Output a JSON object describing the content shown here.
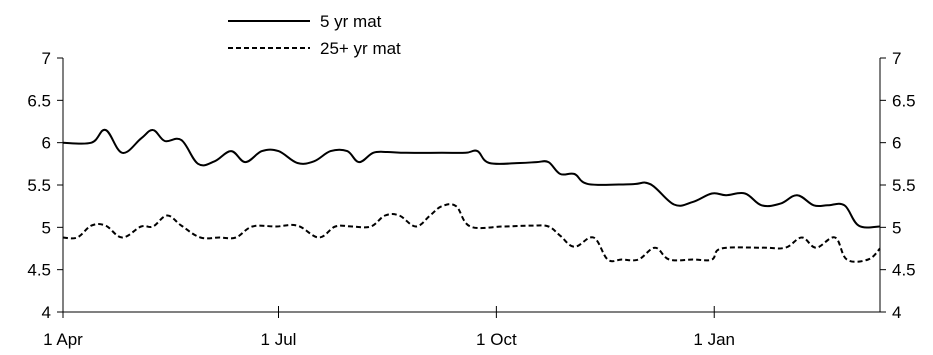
{
  "chart_data": {
    "type": "line",
    "title": "",
    "xlabel": "",
    "ylabel": "",
    "ylim": [
      4,
      7
    ],
    "y_ticks": [
      4,
      4.5,
      5,
      5.5,
      6,
      6.5,
      7
    ],
    "y_tick_labels": [
      "4",
      "4.5",
      "5",
      "5.5",
      "6",
      "6.5",
      "7"
    ],
    "x_ticks": [
      {
        "label": "1 Apr",
        "day": 0
      },
      {
        "label": "1 Jul",
        "day": 91
      },
      {
        "label": "1 Oct",
        "day": 183
      },
      {
        "label": "1 Jan",
        "day": 275
      }
    ],
    "x_range_days": [
      0,
      345
    ],
    "dual_y_axis": true,
    "grid": false,
    "legend_position": "top-center",
    "series": [
      {
        "name": "5 yr mat",
        "style": "solid",
        "color": "#000000",
        "points": [
          [
            0,
            6.0
          ],
          [
            12,
            6.0
          ],
          [
            18,
            6.15
          ],
          [
            25,
            5.88
          ],
          [
            33,
            6.05
          ],
          [
            38,
            6.15
          ],
          [
            43,
            6.02
          ],
          [
            50,
            6.03
          ],
          [
            57,
            5.75
          ],
          [
            64,
            5.78
          ],
          [
            71,
            5.9
          ],
          [
            77,
            5.77
          ],
          [
            84,
            5.9
          ],
          [
            91,
            5.9
          ],
          [
            99,
            5.76
          ],
          [
            106,
            5.78
          ],
          [
            113,
            5.9
          ],
          [
            120,
            5.9
          ],
          [
            125,
            5.77
          ],
          [
            131,
            5.88
          ],
          [
            137,
            5.89
          ],
          [
            145,
            5.88
          ],
          [
            160,
            5.88
          ],
          [
            170,
            5.88
          ],
          [
            175,
            5.9
          ],
          [
            180,
            5.76
          ],
          [
            193,
            5.76
          ],
          [
            200,
            5.77
          ],
          [
            205,
            5.77
          ],
          [
            210,
            5.63
          ],
          [
            216,
            5.63
          ],
          [
            222,
            5.51
          ],
          [
            240,
            5.51
          ],
          [
            248,
            5.51
          ],
          [
            258,
            5.27
          ],
          [
            266,
            5.3
          ],
          [
            274,
            5.4
          ],
          [
            280,
            5.38
          ],
          [
            288,
            5.4
          ],
          [
            295,
            5.26
          ],
          [
            303,
            5.28
          ],
          [
            310,
            5.38
          ],
          [
            317,
            5.26
          ],
          [
            323,
            5.26
          ],
          [
            330,
            5.26
          ],
          [
            336,
            5.02
          ],
          [
            345,
            5.01
          ]
        ]
      },
      {
        "name": "25+ yr mat",
        "style": "dashed",
        "color": "#000000",
        "points": [
          [
            0,
            4.88
          ],
          [
            6,
            4.88
          ],
          [
            12,
            5.02
          ],
          [
            18,
            5.02
          ],
          [
            25,
            4.88
          ],
          [
            33,
            5.01
          ],
          [
            38,
            5.01
          ],
          [
            44,
            5.14
          ],
          [
            50,
            5.02
          ],
          [
            58,
            4.88
          ],
          [
            66,
            4.88
          ],
          [
            73,
            4.88
          ],
          [
            80,
            5.01
          ],
          [
            90,
            5.01
          ],
          [
            99,
            5.02
          ],
          [
            108,
            4.88
          ],
          [
            115,
            5.01
          ],
          [
            122,
            5.01
          ],
          [
            130,
            5.01
          ],
          [
            136,
            5.14
          ],
          [
            142,
            5.14
          ],
          [
            149,
            5.01
          ],
          [
            155,
            5.14
          ],
          [
            160,
            5.25
          ],
          [
            166,
            5.25
          ],
          [
            172,
            5.01
          ],
          [
            186,
            5.01
          ],
          [
            198,
            5.02
          ],
          [
            205,
            5.01
          ],
          [
            210,
            4.9
          ],
          [
            216,
            4.77
          ],
          [
            224,
            4.88
          ],
          [
            230,
            4.62
          ],
          [
            236,
            4.62
          ],
          [
            243,
            4.62
          ],
          [
            250,
            4.76
          ],
          [
            256,
            4.62
          ],
          [
            266,
            4.62
          ],
          [
            274,
            4.62
          ],
          [
            278,
            4.75
          ],
          [
            295,
            4.76
          ],
          [
            305,
            4.76
          ],
          [
            312,
            4.88
          ],
          [
            318,
            4.76
          ],
          [
            326,
            4.88
          ],
          [
            331,
            4.62
          ],
          [
            340,
            4.62
          ],
          [
            345,
            4.75
          ]
        ]
      }
    ]
  }
}
